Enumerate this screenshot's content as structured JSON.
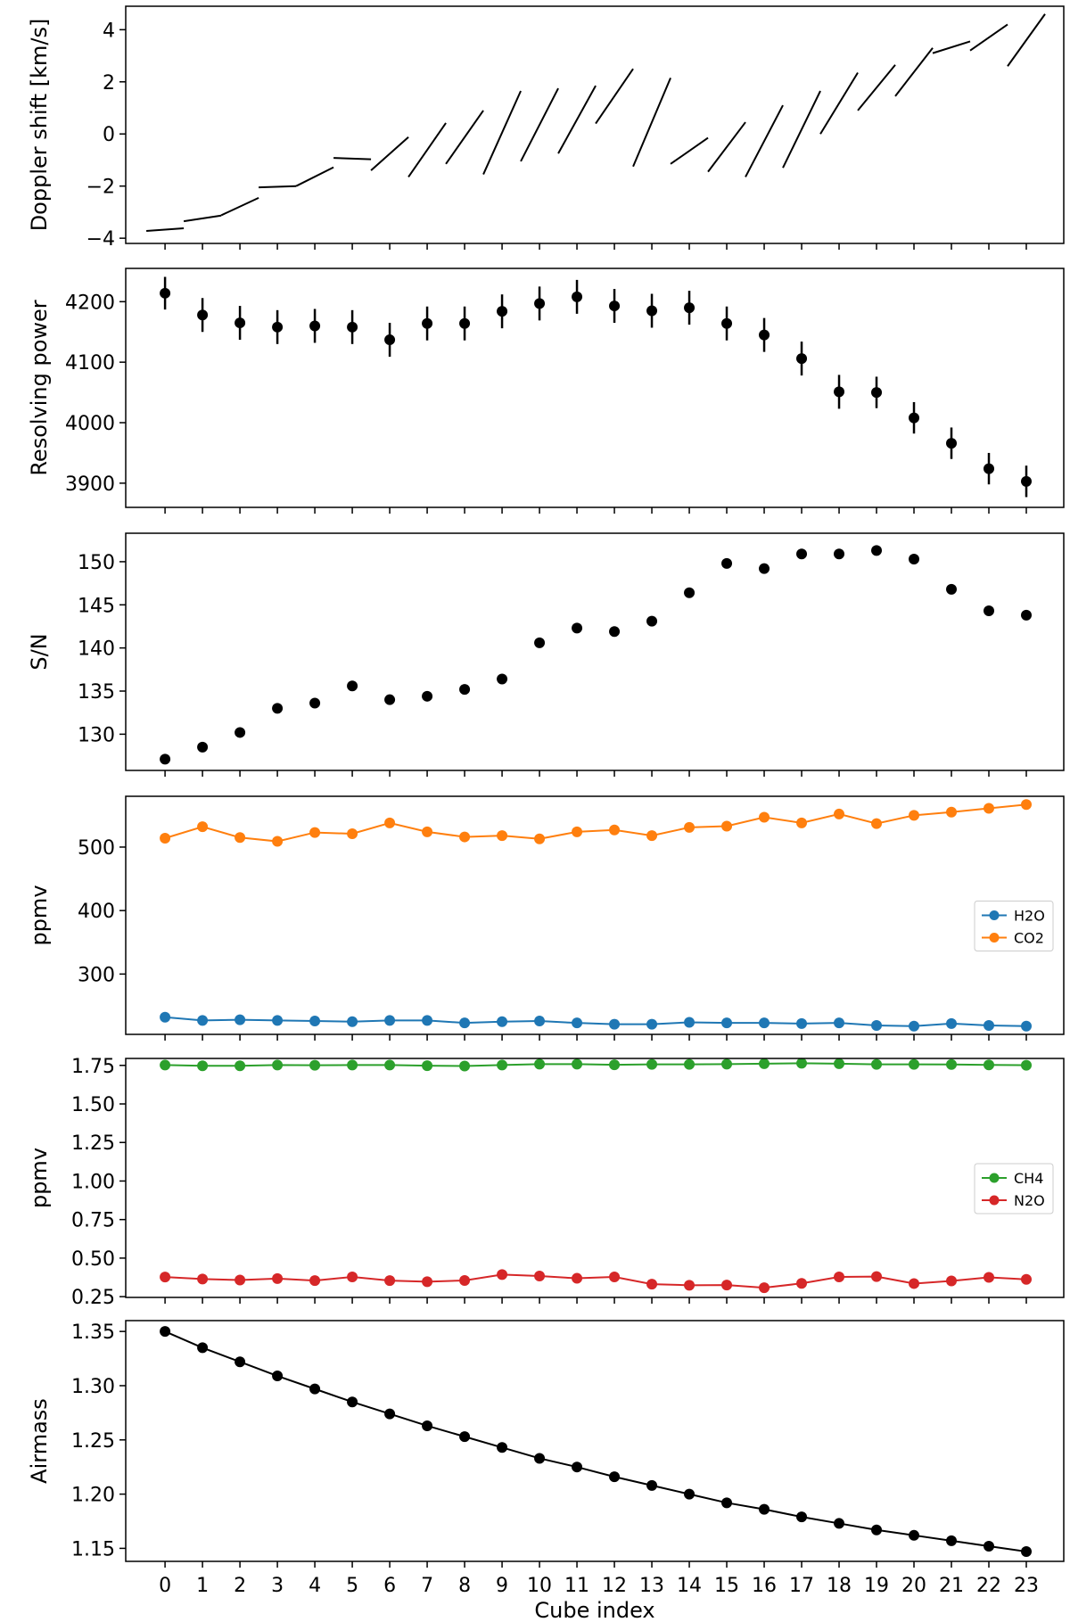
{
  "chart_data": [
    {
      "type": "line",
      "ylabel": "Doppler shift [km/s]",
      "ylim": [
        -4.2,
        4.9
      ],
      "yticks": [
        -4,
        -2,
        0,
        2,
        4
      ],
      "segments_note": "one short line segment per cube, spanning x-0.5 to x+0.5",
      "segments": [
        {
          "x": 0,
          "y_start": -3.72,
          "y_end": -3.62
        },
        {
          "x": 1,
          "y_start": -3.35,
          "y_end": -3.13
        },
        {
          "x": 2,
          "y_start": -3.12,
          "y_end": -2.45
        },
        {
          "x": 3,
          "y_start": -2.05,
          "y_end": -2.0
        },
        {
          "x": 4,
          "y_start": -2.0,
          "y_end": -1.28
        },
        {
          "x": 5,
          "y_start": -0.92,
          "y_end": -0.97
        },
        {
          "x": 6,
          "y_start": -1.4,
          "y_end": -0.12
        },
        {
          "x": 7,
          "y_start": -1.65,
          "y_end": 0.42
        },
        {
          "x": 8,
          "y_start": -1.15,
          "y_end": 0.9
        },
        {
          "x": 9,
          "y_start": -1.55,
          "y_end": 1.65
        },
        {
          "x": 10,
          "y_start": -1.05,
          "y_end": 1.75
        },
        {
          "x": 11,
          "y_start": -0.75,
          "y_end": 1.85
        },
        {
          "x": 12,
          "y_start": 0.4,
          "y_end": 2.5
        },
        {
          "x": 13,
          "y_start": -1.25,
          "y_end": 2.15
        },
        {
          "x": 14,
          "y_start": -1.15,
          "y_end": -0.15
        },
        {
          "x": 15,
          "y_start": -1.45,
          "y_end": 0.45
        },
        {
          "x": 16,
          "y_start": -1.65,
          "y_end": 1.1
        },
        {
          "x": 17,
          "y_start": -1.3,
          "y_end": 1.65
        },
        {
          "x": 18,
          "y_start": 0.0,
          "y_end": 2.35
        },
        {
          "x": 19,
          "y_start": 0.9,
          "y_end": 2.65
        },
        {
          "x": 20,
          "y_start": 1.45,
          "y_end": 3.3
        },
        {
          "x": 21,
          "y_start": 3.1,
          "y_end": 3.55
        },
        {
          "x": 22,
          "y_start": 3.2,
          "y_end": 4.2
        },
        {
          "x": 23,
          "y_start": 2.6,
          "y_end": 4.6
        }
      ]
    },
    {
      "type": "scatter",
      "ylabel": "Resolving power",
      "ylim": [
        3860,
        4255
      ],
      "yticks": [
        3900,
        4000,
        4100,
        4200
      ],
      "error_bars": true,
      "x": [
        0,
        1,
        2,
        3,
        4,
        5,
        6,
        7,
        8,
        9,
        10,
        11,
        12,
        13,
        14,
        15,
        16,
        17,
        18,
        19,
        20,
        21,
        22,
        23
      ],
      "values": [
        4214,
        4178,
        4165,
        4158,
        4160,
        4158,
        4137,
        4164,
        4164,
        4184,
        4197,
        4208,
        4193,
        4185,
        4190,
        4164,
        4145,
        4106,
        4051,
        4050,
        4008,
        3966,
        3924,
        3903
      ],
      "errors": [
        27,
        28,
        28,
        28,
        28,
        28,
        28,
        28,
        28,
        28,
        28,
        28,
        28,
        28,
        28,
        28,
        28,
        28,
        28,
        26,
        26,
        26,
        26,
        26
      ]
    },
    {
      "type": "scatter",
      "ylabel": "S/N",
      "ylim": [
        125.8,
        153.3
      ],
      "yticks": [
        130,
        135,
        140,
        145,
        150
      ],
      "x": [
        0,
        1,
        2,
        3,
        4,
        5,
        6,
        7,
        8,
        9,
        10,
        11,
        12,
        13,
        14,
        15,
        16,
        17,
        18,
        19,
        20,
        21,
        22,
        23
      ],
      "values": [
        127.1,
        128.5,
        130.2,
        133.0,
        133.6,
        135.6,
        134.0,
        134.4,
        135.2,
        136.4,
        140.6,
        142.3,
        141.9,
        143.1,
        146.4,
        149.8,
        149.2,
        150.9,
        150.9,
        151.3,
        150.3,
        146.8,
        144.3,
        143.8
      ]
    },
    {
      "type": "line",
      "ylabel": "ppmv",
      "ylim": [
        205,
        580
      ],
      "yticks": [
        300,
        400,
        500
      ],
      "legend": "center-right",
      "x": [
        0,
        1,
        2,
        3,
        4,
        5,
        6,
        7,
        8,
        9,
        10,
        11,
        12,
        13,
        14,
        15,
        16,
        17,
        18,
        19,
        20,
        21,
        22,
        23
      ],
      "series": [
        {
          "name": "H2O",
          "color": "#1f77b4",
          "values": [
            232,
            227,
            228,
            227,
            226,
            225,
            227,
            227,
            223,
            225,
            226,
            223,
            221,
            221,
            224,
            223,
            223,
            222,
            223,
            219,
            218,
            222,
            219,
            218
          ]
        },
        {
          "name": "CO2",
          "color": "#ff7f0e",
          "values": [
            514,
            532,
            515,
            509,
            523,
            521,
            538,
            524,
            516,
            518,
            513,
            524,
            527,
            518,
            531,
            533,
            547,
            538,
            552,
            537,
            550,
            555,
            561,
            567
          ]
        }
      ]
    },
    {
      "type": "line",
      "ylabel": "ppmv",
      "ylim": [
        0.245,
        1.795
      ],
      "yticks": [
        0.25,
        0.5,
        0.75,
        1.0,
        1.25,
        1.5,
        1.75
      ],
      "ytick_labels": [
        "0.25",
        "0.50",
        "0.75",
        "1.00",
        "1.25",
        "1.50",
        "1.75"
      ],
      "legend": "center-right",
      "x": [
        0,
        1,
        2,
        3,
        4,
        5,
        6,
        7,
        8,
        9,
        10,
        11,
        12,
        13,
        14,
        15,
        16,
        17,
        18,
        19,
        20,
        21,
        22,
        23
      ],
      "series": [
        {
          "name": "CH4",
          "color": "#2ca02c",
          "values": [
            1.752,
            1.747,
            1.747,
            1.752,
            1.751,
            1.752,
            1.752,
            1.748,
            1.746,
            1.752,
            1.758,
            1.758,
            1.754,
            1.757,
            1.757,
            1.758,
            1.761,
            1.764,
            1.761,
            1.757,
            1.757,
            1.756,
            1.753,
            1.751
          ]
        },
        {
          "name": "N2O",
          "color": "#d62728",
          "values": [
            0.377,
            0.364,
            0.358,
            0.367,
            0.354,
            0.378,
            0.354,
            0.347,
            0.355,
            0.393,
            0.384,
            0.369,
            0.378,
            0.331,
            0.324,
            0.325,
            0.308,
            0.336,
            0.378,
            0.38,
            0.335,
            0.352,
            0.375,
            0.362
          ]
        }
      ]
    },
    {
      "type": "line",
      "ylabel": "Airmass",
      "xlabel": "Cube index",
      "ylim": [
        1.138,
        1.36
      ],
      "yticks": [
        1.15,
        1.2,
        1.25,
        1.3,
        1.35
      ],
      "ytick_labels": [
        "1.15",
        "1.20",
        "1.25",
        "1.30",
        "1.35"
      ],
      "x": [
        0,
        1,
        2,
        3,
        4,
        5,
        6,
        7,
        8,
        9,
        10,
        11,
        12,
        13,
        14,
        15,
        16,
        17,
        18,
        19,
        20,
        21,
        22,
        23
      ],
      "xtick_labels": [
        "0",
        "1",
        "2",
        "3",
        "4",
        "5",
        "6",
        "7",
        "8",
        "9",
        "10",
        "11",
        "12",
        "13",
        "14",
        "15",
        "16",
        "17",
        "18",
        "19",
        "20",
        "21",
        "22",
        "23"
      ],
      "series": [
        {
          "color": "#000000",
          "values": [
            1.35,
            1.335,
            1.322,
            1.309,
            1.297,
            1.285,
            1.274,
            1.263,
            1.253,
            1.243,
            1.233,
            1.225,
            1.216,
            1.208,
            1.2,
            1.192,
            1.186,
            1.179,
            1.173,
            1.167,
            1.162,
            1.157,
            1.152,
            1.147
          ]
        }
      ]
    }
  ]
}
